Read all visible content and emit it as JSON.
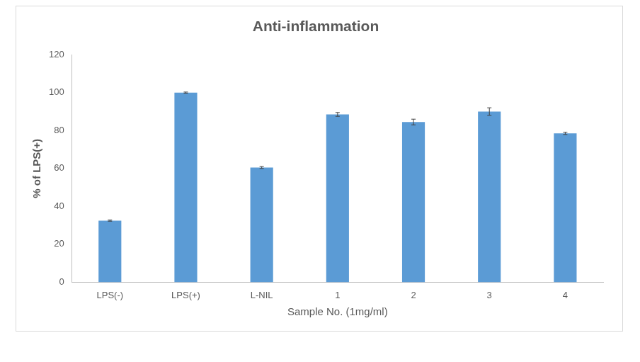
{
  "chart_data": {
    "type": "bar",
    "title": "Anti-inflammation",
    "x_label": "Sample No. (1mg/ml)",
    "y_label": "% of LPS(+)",
    "categories": [
      "LPS(-)",
      "LPS(+)",
      "L-NIL",
      "1",
      "2",
      "3",
      "4"
    ],
    "values": [
      32.5,
      100,
      60.5,
      88.5,
      84.5,
      90,
      78.5
    ],
    "errors": [
      0.3,
      0.3,
      0.5,
      1,
      1.5,
      2,
      0.6
    ],
    "color": "#5b9bd5",
    "ylim": [
      0,
      120
    ],
    "yticks": [
      0,
      20,
      40,
      60,
      80,
      100,
      120
    ],
    "grid": false
  }
}
